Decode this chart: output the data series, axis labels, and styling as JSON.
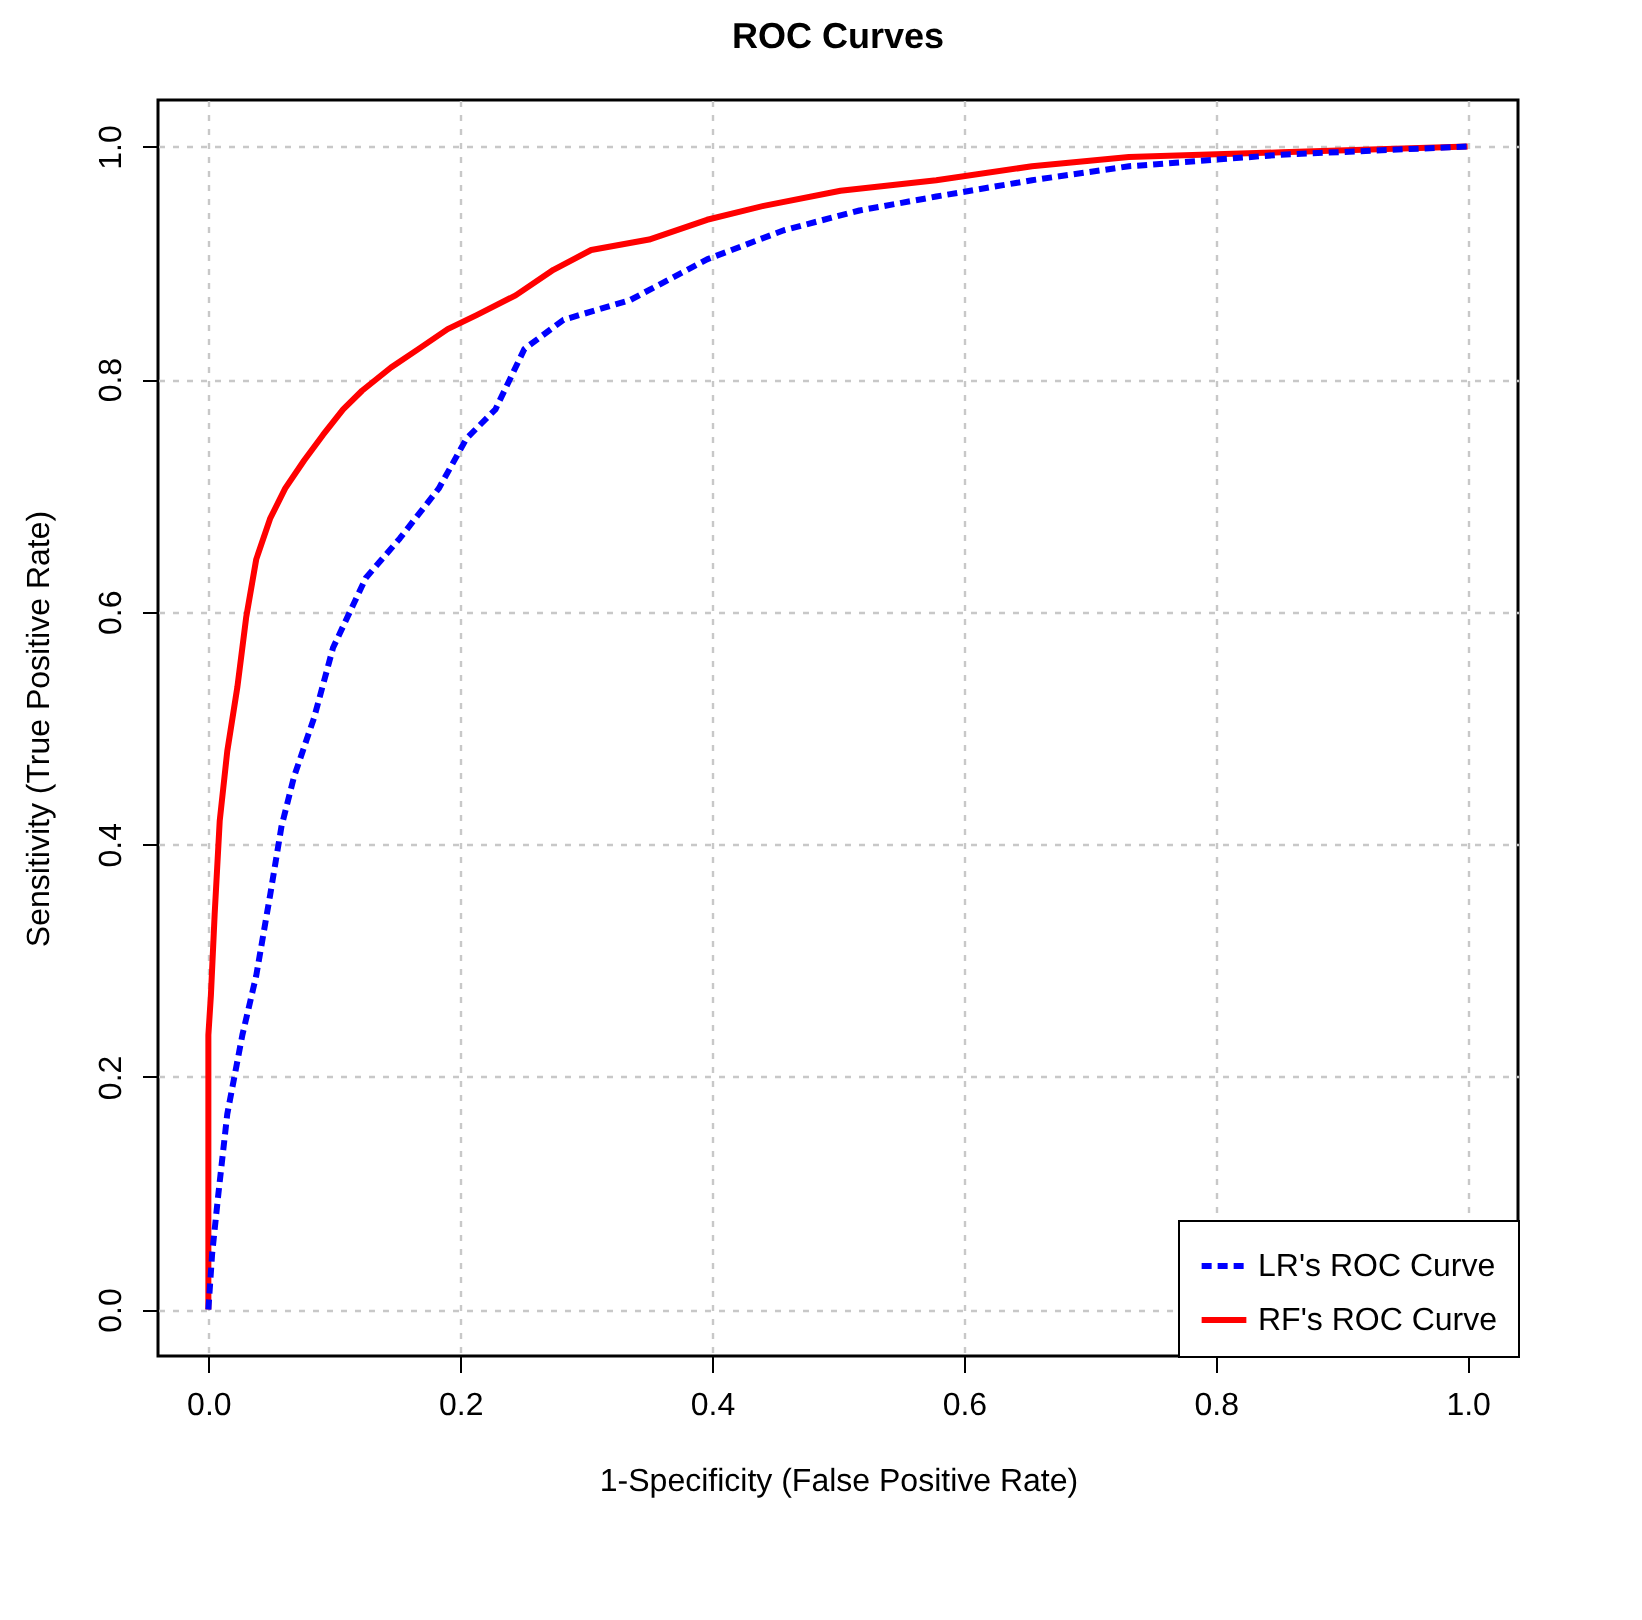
{
  "chart_data": {
    "type": "line",
    "title": "ROC Curves",
    "xlabel": "1-Specificity (False Positive Rate)",
    "ylabel": "Sensitivity (True Positive Rate)",
    "xlim": [
      -0.04,
      1.04
    ],
    "ylim": [
      -0.04,
      1.04
    ],
    "xticks": [
      {
        "value": 0,
        "label": "0.0"
      },
      {
        "value": 0.2,
        "label": "0.2"
      },
      {
        "value": 0.4,
        "label": "0.4"
      },
      {
        "value": 0.6,
        "label": "0.6"
      },
      {
        "value": 0.8,
        "label": "0.8"
      },
      {
        "value": 1,
        "label": "1.0"
      }
    ],
    "yticks": [
      {
        "value": 0,
        "label": "0.0"
      },
      {
        "value": 0.2,
        "label": "0.2"
      },
      {
        "value": 0.4,
        "label": "0.4"
      },
      {
        "value": 0.6,
        "label": "0.6"
      },
      {
        "value": 0.8,
        "label": "0.8"
      },
      {
        "value": 1,
        "label": "1.0"
      }
    ],
    "grid": true,
    "legend": "bottom right",
    "series": [
      {
        "name": "LR's ROC Curve",
        "color": "#0000ff",
        "line_style": "dashed",
        "x": [
          0,
          0.003,
          0.008,
          0.015,
          0.027,
          0.038,
          0.049,
          0.058,
          0.068,
          0.084,
          0.099,
          0.125,
          0.152,
          0.183,
          0.205,
          0.228,
          0.251,
          0.282,
          0.335,
          0.396,
          0.457,
          0.517,
          0.578,
          0.654,
          0.731,
          0.852,
          1
        ],
        "values": [
          0,
          0.048,
          0.1,
          0.168,
          0.236,
          0.287,
          0.356,
          0.415,
          0.458,
          0.509,
          0.569,
          0.629,
          0.663,
          0.706,
          0.749,
          0.774,
          0.826,
          0.851,
          0.868,
          0.903,
          0.928,
          0.945,
          0.957,
          0.971,
          0.983,
          0.993,
          1
        ]
      },
      {
        "name": "RF's ROC Curve",
        "color": "#ff0000",
        "line_style": "solid",
        "x": [
          0,
          0,
          0.002,
          0.005,
          0.009,
          0.015,
          0.023,
          0.03,
          0.038,
          0.049,
          0.061,
          0.076,
          0.091,
          0.107,
          0.122,
          0.145,
          0.167,
          0.19,
          0.213,
          0.244,
          0.274,
          0.304,
          0.35,
          0.396,
          0.441,
          0.502,
          0.578,
          0.654,
          0.731,
          0.852,
          1
        ],
        "values": [
          0,
          0.236,
          0.27,
          0.34,
          0.42,
          0.48,
          0.535,
          0.595,
          0.645,
          0.68,
          0.706,
          0.73,
          0.752,
          0.774,
          0.79,
          0.81,
          0.826,
          0.843,
          0.855,
          0.872,
          0.894,
          0.911,
          0.92,
          0.937,
          0.949,
          0.962,
          0.971,
          0.983,
          0.991,
          0.995,
          1
        ]
      }
    ]
  }
}
